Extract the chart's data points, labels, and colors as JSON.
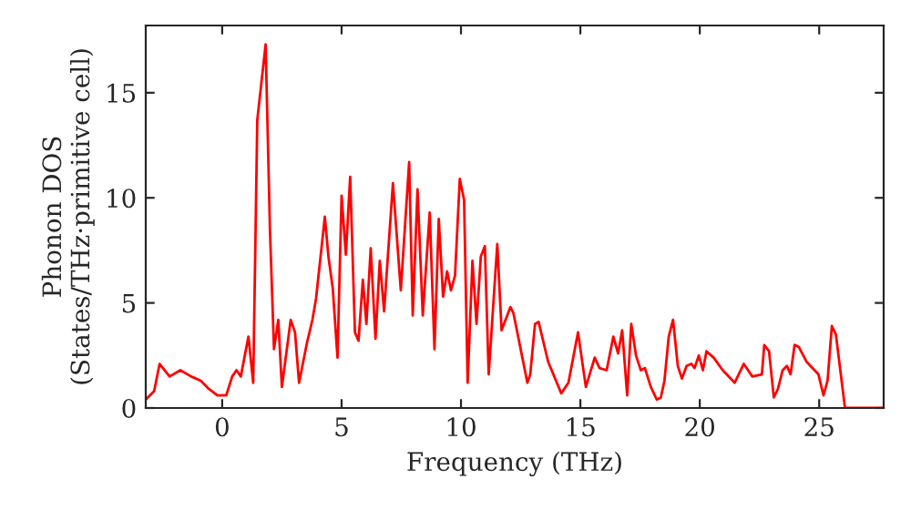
{
  "chart_data": {
    "type": "line",
    "xlabel": "Frequency (THz)",
    "ylabel": "Phonon DOS\n(States/THz·primitive cell)",
    "xlim": [
      -3.2,
      27.7
    ],
    "ylim": [
      0,
      18.2
    ],
    "xticks": [
      0,
      5,
      10,
      15,
      20,
      25
    ],
    "yticks": [
      0,
      5,
      10,
      15
    ],
    "grid": false,
    "legend": false,
    "marker": "none",
    "line_style": "solid",
    "series": [
      {
        "color": "#ff0000",
        "x": [
          -3.2,
          -2.85,
          -2.62,
          -2.2,
          -1.75,
          -1.3,
          -0.9,
          -0.55,
          -0.2,
          0.17,
          0.42,
          0.6,
          0.78,
          1.1,
          1.3,
          1.47,
          1.82,
          2.0,
          2.17,
          2.35,
          2.5,
          2.87,
          3.05,
          3.22,
          3.55,
          3.78,
          3.93,
          4.3,
          4.45,
          4.63,
          4.83,
          5.0,
          5.18,
          5.36,
          5.56,
          5.71,
          5.89,
          6.04,
          6.22,
          6.42,
          6.6,
          6.78,
          7.15,
          7.48,
          7.83,
          7.98,
          8.18,
          8.4,
          8.69,
          8.89,
          9.07,
          9.25,
          9.42,
          9.58,
          9.75,
          9.95,
          10.13,
          10.28,
          10.48,
          10.65,
          10.83,
          11.0,
          11.16,
          11.52,
          11.7,
          12.07,
          12.2,
          12.78,
          12.9,
          13.1,
          13.25,
          13.65,
          14.2,
          14.5,
          14.9,
          15.23,
          15.6,
          15.8,
          16.1,
          16.38,
          16.58,
          16.75,
          16.96,
          17.13,
          17.33,
          17.53,
          17.7,
          17.95,
          18.2,
          18.37,
          18.52,
          18.7,
          18.88,
          19.08,
          19.25,
          19.45,
          19.65,
          19.78,
          19.96,
          20.13,
          20.28,
          20.58,
          20.96,
          21.46,
          21.84,
          22.2,
          22.6,
          22.7,
          22.9,
          23.1,
          23.27,
          23.47,
          23.65,
          23.8,
          23.97,
          24.15,
          24.47,
          24.97,
          25.18,
          25.35,
          25.53,
          25.7,
          26.08,
          27.7
        ],
        "values": [
          0.4,
          0.8,
          2.1,
          1.5,
          1.8,
          1.5,
          1.3,
          0.9,
          0.6,
          0.6,
          1.5,
          1.8,
          1.5,
          3.4,
          1.2,
          13.7,
          17.3,
          8.5,
          2.8,
          4.2,
          1.0,
          4.2,
          3.6,
          1.2,
          3.1,
          4.2,
          5.2,
          9.1,
          7.2,
          5.7,
          2.4,
          10.1,
          7.3,
          11.0,
          3.6,
          3.2,
          6.1,
          4.0,
          7.6,
          3.3,
          7.0,
          4.6,
          10.7,
          5.6,
          11.7,
          4.4,
          10.4,
          4.4,
          9.3,
          2.8,
          9.0,
          5.3,
          6.5,
          5.6,
          6.3,
          10.9,
          9.9,
          1.2,
          7.0,
          4.0,
          7.2,
          7.7,
          1.6,
          7.8,
          3.7,
          4.8,
          4.5,
          1.2,
          1.6,
          4.0,
          4.1,
          2.2,
          0.7,
          1.2,
          3.6,
          1.0,
          2.4,
          1.9,
          1.8,
          3.4,
          2.6,
          3.7,
          0.6,
          4.0,
          2.5,
          1.8,
          1.9,
          1.0,
          0.4,
          0.5,
          1.3,
          3.4,
          4.2,
          2.0,
          1.4,
          2.0,
          2.1,
          1.9,
          2.5,
          1.8,
          2.7,
          2.4,
          1.8,
          1.2,
          2.1,
          1.5,
          1.6,
          3.0,
          2.7,
          0.5,
          0.9,
          1.8,
          2.0,
          1.6,
          3.0,
          2.9,
          2.2,
          1.6,
          0.6,
          1.3,
          3.9,
          3.5,
          0.0,
          0.0
        ]
      }
    ]
  }
}
